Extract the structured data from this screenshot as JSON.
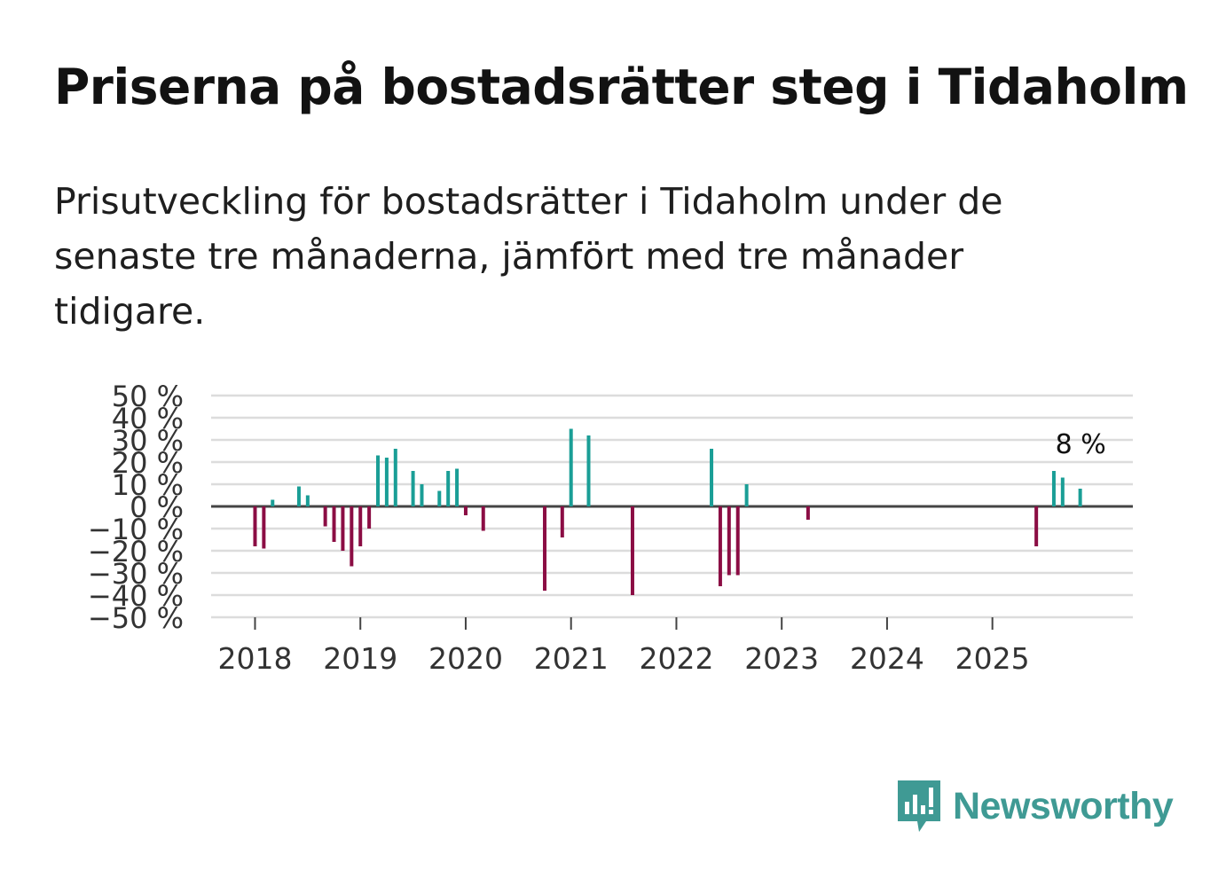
{
  "title": "Priserna på bostadsrätter steg i Tidaholm",
  "subtitle": "Prisutveckling för bostadsrätter i Tidaholm under de senaste tre månaderna, jämfört med tre månader tidigare.",
  "brand": {
    "name": "Newsworthy",
    "color": "#3f9a94"
  },
  "colors": {
    "positive": "#1a9e96",
    "negative": "#8b0d44",
    "grid": "#dcdcdc",
    "zero": "#444444",
    "text": "#333333"
  },
  "chart_data": {
    "type": "bar",
    "title": "Priserna på bostadsrätter steg i Tidaholm",
    "ylabel": "",
    "xlabel": "",
    "ylim": [
      -50,
      50
    ],
    "yticks": [
      50,
      40,
      30,
      20,
      10,
      0,
      -10,
      -20,
      -30,
      -40,
      -50
    ],
    "ytick_labels": [
      "50 %",
      "40 %",
      "30 %",
      "20 %",
      "10 %",
      "0 %",
      "−10 %",
      "−20 %",
      "−30 %",
      "−40 %",
      "−50 %"
    ],
    "xlim": [
      "2017-08",
      "2026-05"
    ],
    "xticks": [
      "2018",
      "2019",
      "2020",
      "2021",
      "2022",
      "2023",
      "2024",
      "2025"
    ],
    "grid": true,
    "series": [
      {
        "name": "Prisutveckling",
        "points": [
          {
            "x": "2018-01",
            "value": -18
          },
          {
            "x": "2018-02",
            "value": -19
          },
          {
            "x": "2018-03",
            "value": 3
          },
          {
            "x": "2018-06",
            "value": 9
          },
          {
            "x": "2018-07",
            "value": 5
          },
          {
            "x": "2018-09",
            "value": -9
          },
          {
            "x": "2018-10",
            "value": -16
          },
          {
            "x": "2018-11",
            "value": -20
          },
          {
            "x": "2018-12",
            "value": -27
          },
          {
            "x": "2019-01",
            "value": -18
          },
          {
            "x": "2019-02",
            "value": -10
          },
          {
            "x": "2019-03",
            "value": 23
          },
          {
            "x": "2019-04",
            "value": 22
          },
          {
            "x": "2019-05",
            "value": 26
          },
          {
            "x": "2019-07",
            "value": 16
          },
          {
            "x": "2019-08",
            "value": 10
          },
          {
            "x": "2019-10",
            "value": 7
          },
          {
            "x": "2019-11",
            "value": 16
          },
          {
            "x": "2019-12",
            "value": 17
          },
          {
            "x": "2020-01",
            "value": -4
          },
          {
            "x": "2020-03",
            "value": -11
          },
          {
            "x": "2020-10",
            "value": -38
          },
          {
            "x": "2020-12",
            "value": -14
          },
          {
            "x": "2021-01",
            "value": 35
          },
          {
            "x": "2021-03",
            "value": 32
          },
          {
            "x": "2021-08",
            "value": -40
          },
          {
            "x": "2022-05",
            "value": 26
          },
          {
            "x": "2022-06",
            "value": -36
          },
          {
            "x": "2022-07",
            "value": -31
          },
          {
            "x": "2022-08",
            "value": -31
          },
          {
            "x": "2022-09",
            "value": 10
          },
          {
            "x": "2023-04",
            "value": -6
          },
          {
            "x": "2025-06",
            "value": -18
          },
          {
            "x": "2025-08",
            "value": 16
          },
          {
            "x": "2025-09",
            "value": 13
          },
          {
            "x": "2025-11",
            "value": 8
          }
        ]
      }
    ],
    "annotations": [
      {
        "x": "2025-11",
        "value": 8,
        "text": "8 %"
      }
    ]
  }
}
